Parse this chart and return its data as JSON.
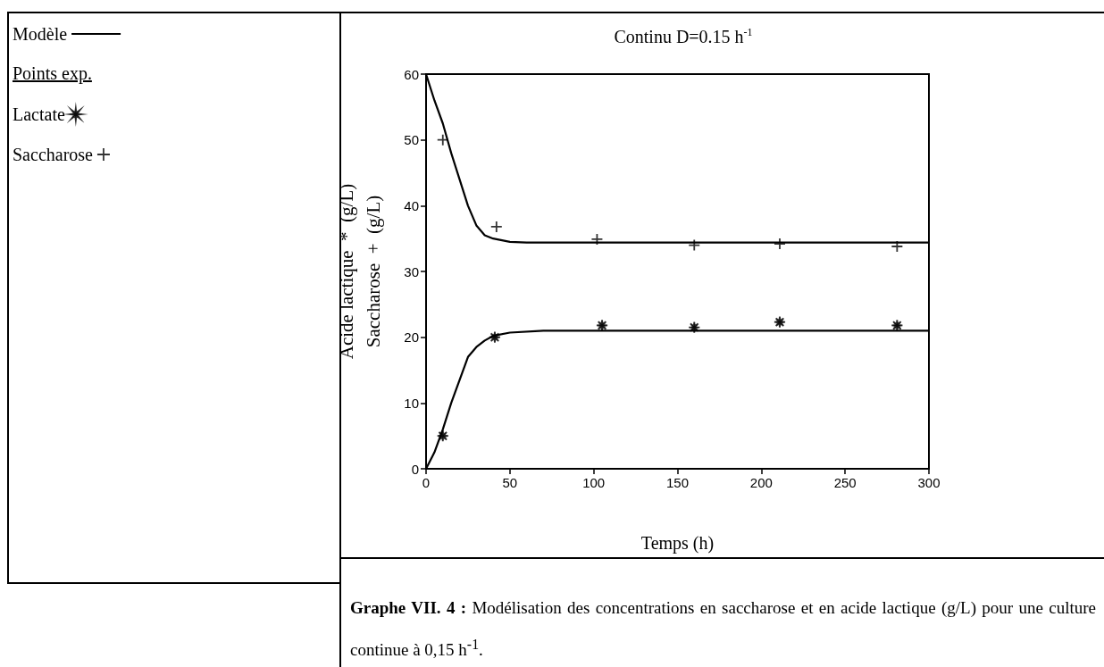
{
  "chart_data": {
    "type": "line",
    "title": "Continu D=0.15 h$^{-1}$",
    "xlabel": "Temps (h)",
    "ylabel": "Acide lactique  *  (g/L)\nSaccharose  +  (g/L)",
    "legend_title": "Points exp.",
    "annotations": [
      "Graphe VII. 4 :",
      "Modélisation des concentrations en saccharose et en acide lactique (g/L) pour une culture continue à 0,15 h$^{-1}$."
    ],
    "xlim": [
      0,
      300
    ],
    "ylim": [
      0,
      60
    ],
    "xticks": [
      0,
      50,
      100,
      150,
      200,
      250,
      300
    ],
    "yticks": [
      0,
      10,
      20,
      30,
      40,
      50,
      60
    ],
    "grid": false,
    "legend": "left",
    "line_style": "solid",
    "series": [
      {
        "name": "Modèle",
        "marker": "none",
        "color": "#000000",
        "x": [
          0,
          5,
          10,
          15,
          20,
          25,
          30,
          35,
          40,
          50,
          60,
          100,
          300
        ],
        "values": [
          60,
          56,
          52.5,
          48,
          44,
          40,
          37,
          35.5,
          35,
          34.5,
          34.4,
          34.4,
          34.4
        ]
      },
      {
        "marker": "none",
        "color": "#000000",
        "x": [
          0,
          5,
          10,
          15,
          20,
          25,
          30,
          35,
          40,
          50,
          70,
          300
        ],
        "values": [
          0,
          2.5,
          6,
          10,
          13.5,
          17,
          18.5,
          19.5,
          20.2,
          20.7,
          21,
          21
        ]
      },
      {
        "name": "Lactate",
        "type": "scatter",
        "marker": "star",
        "color": "#000000",
        "x": [
          10,
          41,
          105,
          160,
          211,
          281
        ],
        "values": [
          5,
          20,
          21.8,
          21.5,
          22.3,
          21.8
        ]
      },
      {
        "name": "Saccharose",
        "type": "scatter",
        "marker": "cross",
        "color": "#000000",
        "x": [
          10,
          42,
          102,
          160,
          211,
          281
        ],
        "values": [
          50,
          36.8,
          34.9,
          34,
          34.2,
          33.8
        ]
      }
    ]
  }
}
